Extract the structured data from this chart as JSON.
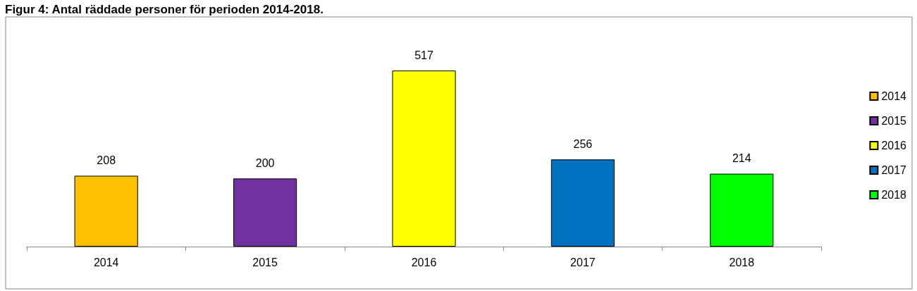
{
  "chart_data": {
    "type": "bar",
    "title": "Figur 4: Antal räddade personer för perioden 2014-2018.",
    "categories": [
      "2014",
      "2015",
      "2016",
      "2017",
      "2018"
    ],
    "series": [
      {
        "name": "2014",
        "color": "#ffc000",
        "values": [
          208,
          null,
          null,
          null,
          null
        ]
      },
      {
        "name": "2015",
        "color": "#7030a0",
        "values": [
          null,
          200,
          null,
          null,
          null
        ]
      },
      {
        "name": "2016",
        "color": "#ffff00",
        "values": [
          null,
          null,
          517,
          null,
          null
        ]
      },
      {
        "name": "2017",
        "color": "#0070c0",
        "values": [
          null,
          null,
          null,
          256,
          null
        ]
      },
      {
        "name": "2018",
        "color": "#00ff00",
        "values": [
          null,
          null,
          null,
          null,
          214
        ]
      }
    ],
    "data_labels": true,
    "grid": false,
    "legend": "right"
  }
}
